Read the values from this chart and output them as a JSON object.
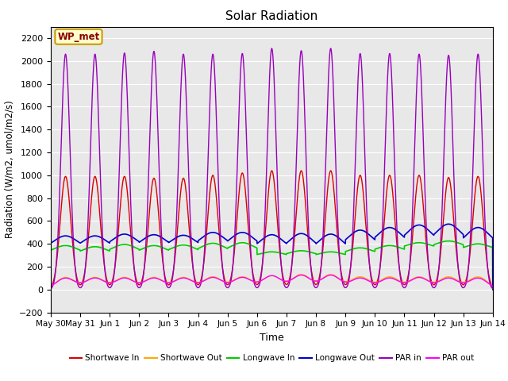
{
  "title": "Solar Radiation",
  "xlabel": "Time",
  "ylabel": "Radiation (W/m2, umol/m2/s)",
  "ylim": [
    -200,
    2300
  ],
  "yticks": [
    -200,
    0,
    200,
    400,
    600,
    800,
    1000,
    1200,
    1400,
    1600,
    1800,
    2000,
    2200
  ],
  "annotation_label": "WP_met",
  "background_color": "#e8e8e8",
  "series": {
    "shortwave_in": {
      "label": "Shortwave In",
      "color": "#dd0000"
    },
    "shortwave_out": {
      "label": "Shortwave Out",
      "color": "#ffaa00"
    },
    "longwave_in": {
      "label": "Longwave In",
      "color": "#00cc00"
    },
    "longwave_out": {
      "label": "Longwave Out",
      "color": "#0000cc"
    },
    "par_in": {
      "label": "PAR in",
      "color": "#9900bb"
    },
    "par_out": {
      "label": "PAR out",
      "color": "#ff00ff"
    }
  },
  "n_days": 15,
  "xtick_labels": [
    "May 30",
    "May 31",
    "Jun 1",
    "Jun 2",
    "Jun 3",
    "Jun 4",
    "Jun 5",
    "Jun 6",
    "Jun 7",
    "Jun 8",
    "Jun 9",
    "Jun 10",
    "Jun 11",
    "Jun 12",
    "Jun 13",
    "Jun 14"
  ],
  "shortwave_in_peaks": [
    990,
    990,
    990,
    975,
    975,
    1000,
    1020,
    1040,
    1040,
    1040,
    1000,
    1000,
    1000,
    980,
    990
  ],
  "shortwave_out_peaks": [
    105,
    105,
    105,
    105,
    105,
    110,
    110,
    120,
    130,
    130,
    110,
    110,
    110,
    110,
    110
  ],
  "par_in_peaks": [
    2060,
    2060,
    2070,
    2085,
    2060,
    2060,
    2065,
    2110,
    2090,
    2110,
    2065,
    2065,
    2060,
    2050,
    2060
  ],
  "par_out_peaks": [
    100,
    100,
    100,
    100,
    100,
    105,
    105,
    120,
    125,
    125,
    100,
    100,
    105,
    100,
    100
  ],
  "longwave_in_base": [
    315,
    310,
    320,
    315,
    320,
    325,
    330,
    290,
    295,
    290,
    310,
    330,
    360,
    370,
    345
  ],
  "longwave_in_amp": [
    70,
    65,
    75,
    70,
    70,
    80,
    80,
    40,
    45,
    40,
    55,
    55,
    50,
    55,
    55
  ],
  "longwave_out_base": [
    360,
    360,
    370,
    365,
    365,
    375,
    370,
    345,
    345,
    340,
    375,
    395,
    410,
    415,
    385
  ],
  "longwave_out_amp": [
    110,
    110,
    115,
    115,
    110,
    125,
    130,
    135,
    145,
    145,
    145,
    148,
    155,
    158,
    158
  ],
  "sigma_sharp": 0.18,
  "sigma_par": 0.15,
  "sigma_par_out": 0.32,
  "sigma_sw_out": 0.32
}
